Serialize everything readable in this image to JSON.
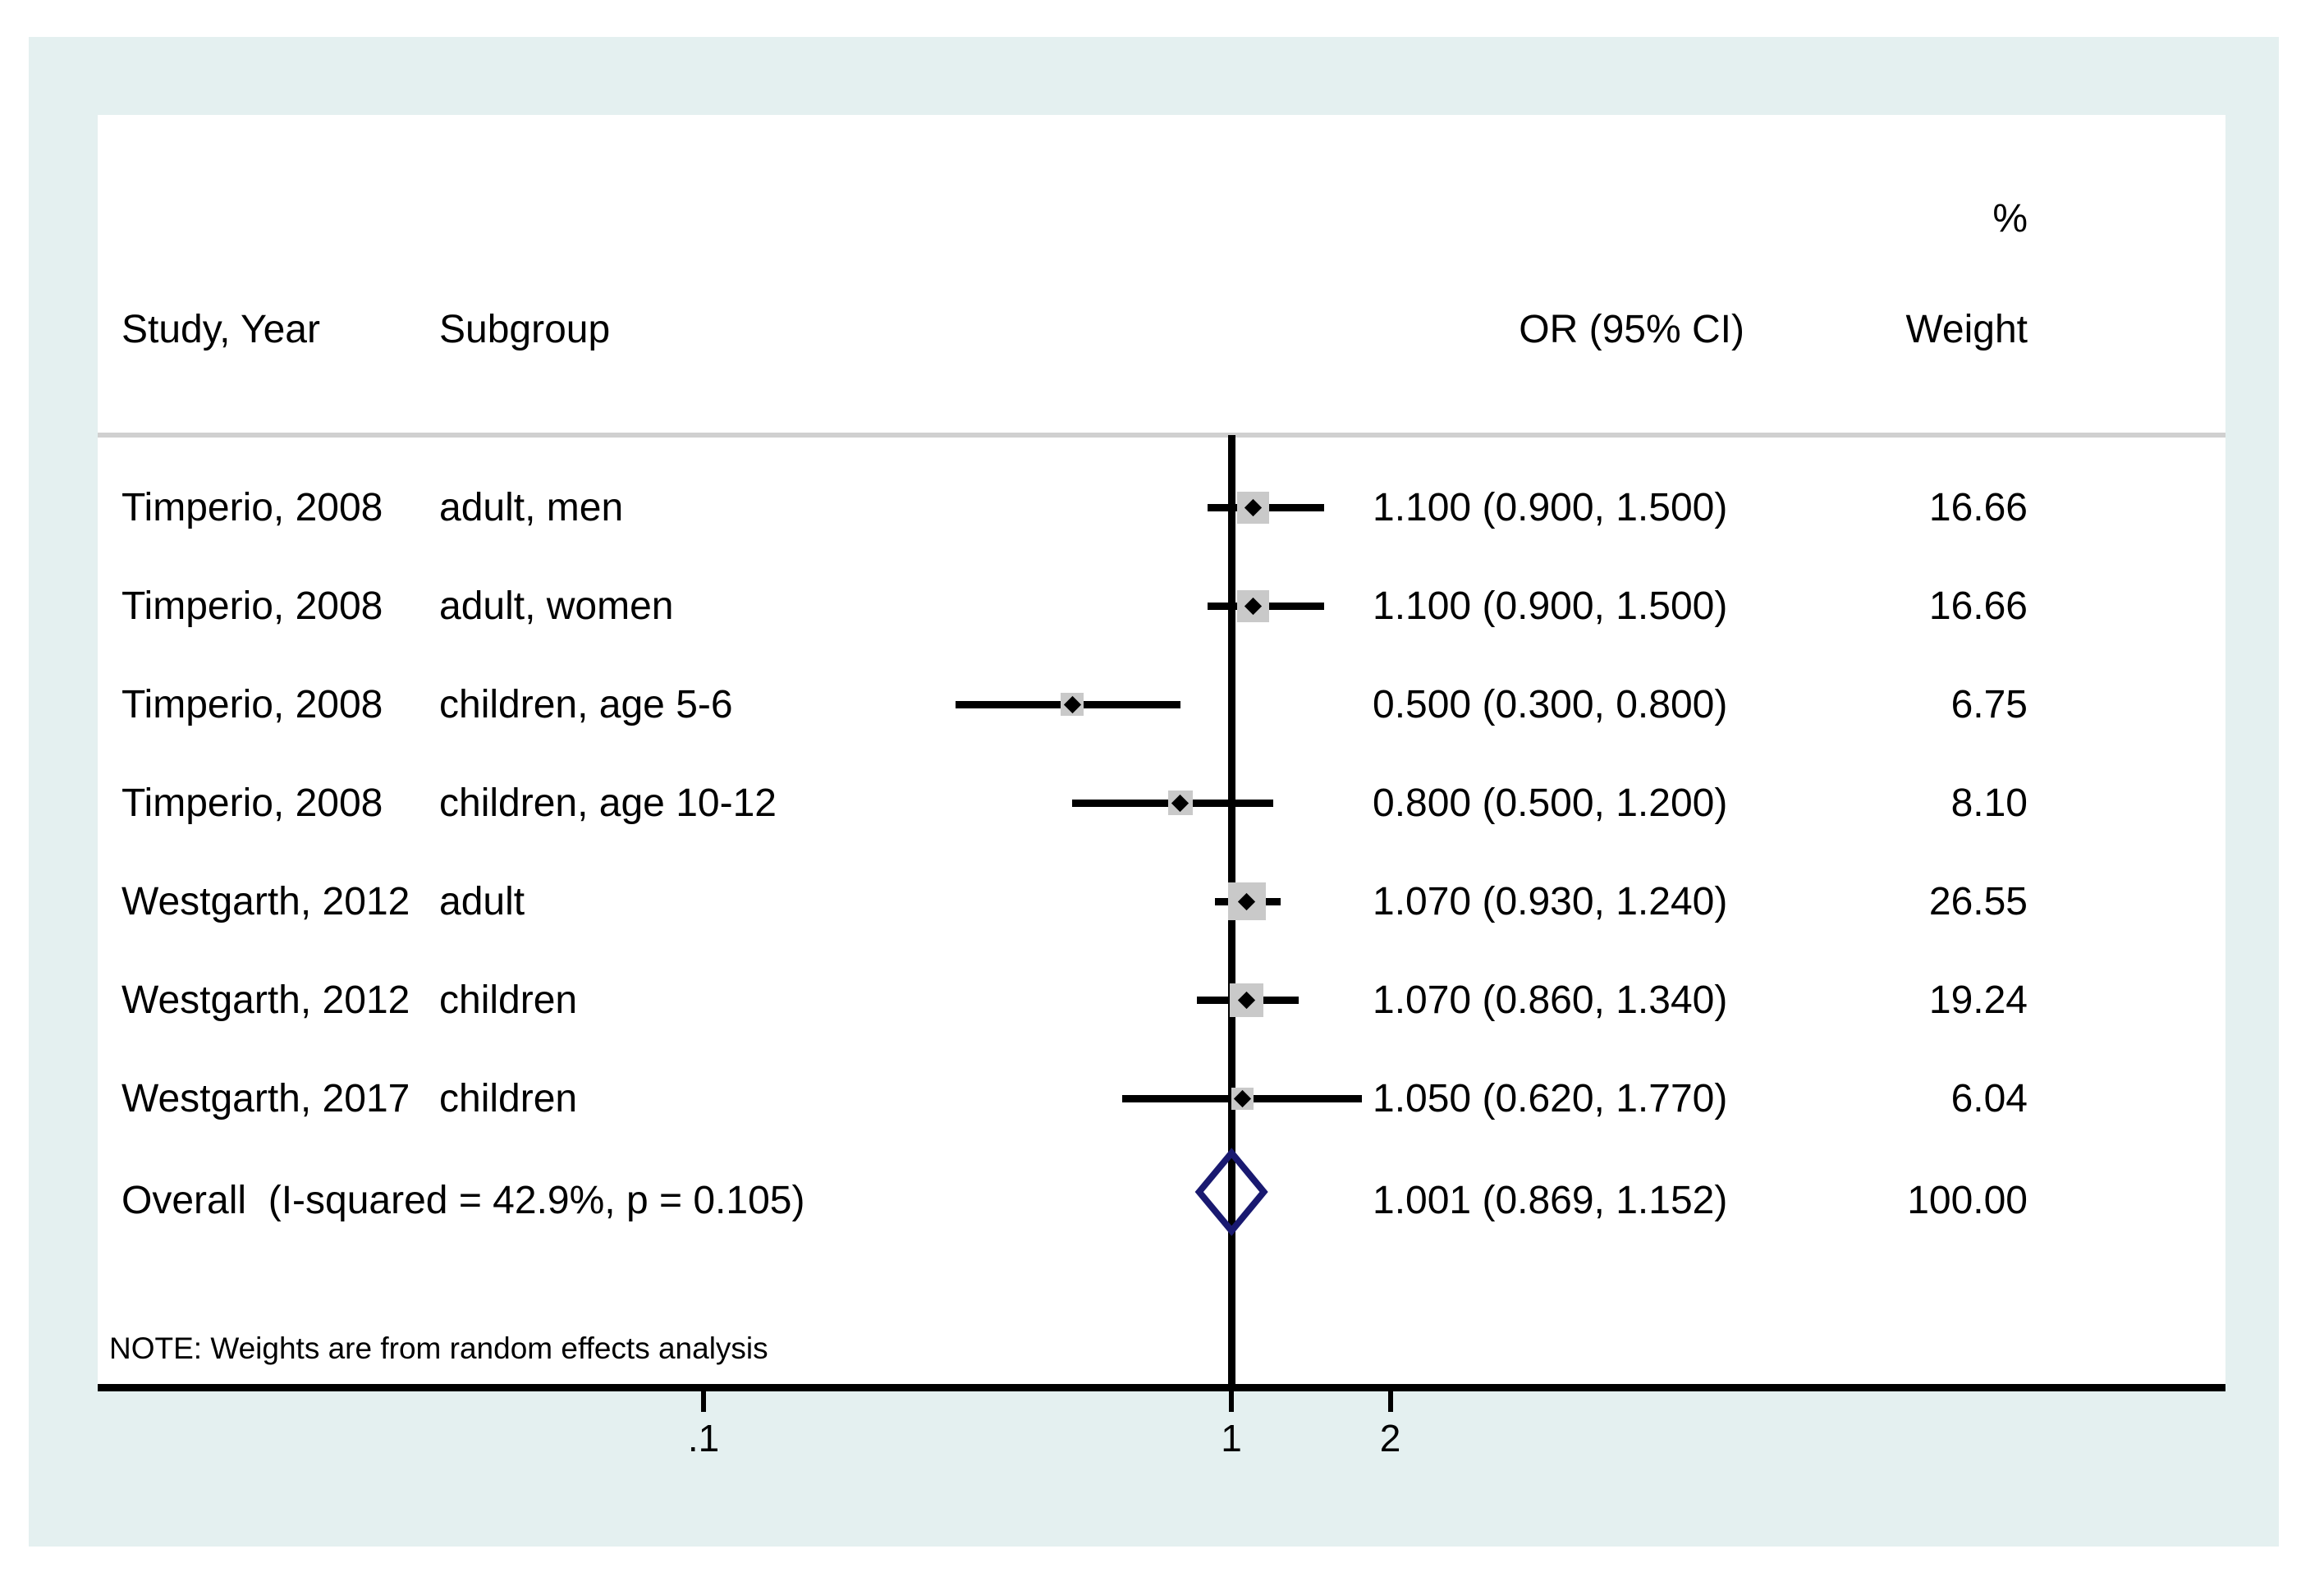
{
  "style": {
    "canvas_bg": "#ffffff",
    "region_bg": "#e4f0f0",
    "plot_bg": "#ffffff",
    "divider": "#d0d0d0",
    "line": "#000000",
    "weight_square": "#c9c9c9",
    "diamond": "#191970",
    "text": "#000000"
  },
  "chart_data": {
    "type": "forest",
    "columns": {
      "study": "Study, Year",
      "subgroup": "Subgroup",
      "percent": "%",
      "or_ci": "OR (95% CI)",
      "weight": "Weight"
    },
    "x_axis": {
      "scale": "log10",
      "ref_line_value": 1,
      "ticks": [
        {
          "label": ".1",
          "value": 0.1
        },
        {
          "label": "1",
          "value": 1
        },
        {
          "label": "2",
          "value": 2
        }
      ]
    },
    "studies": [
      {
        "study": "Timperio, 2008",
        "subgroup": "adult, men",
        "or": 1.1,
        "ci_low": 0.9,
        "ci_high": 1.5,
        "or_label": "1.100 (0.900, 1.500)",
        "weight": 16.66,
        "weight_label": "16.66"
      },
      {
        "study": "Timperio, 2008",
        "subgroup": "adult, women",
        "or": 1.1,
        "ci_low": 0.9,
        "ci_high": 1.5,
        "or_label": "1.100 (0.900, 1.500)",
        "weight": 16.66,
        "weight_label": "16.66"
      },
      {
        "study": "Timperio, 2008",
        "subgroup": "children, age 5-6",
        "or": 0.5,
        "ci_low": 0.3,
        "ci_high": 0.8,
        "or_label": "0.500 (0.300, 0.800)",
        "weight": 6.75,
        "weight_label": "6.75"
      },
      {
        "study": "Timperio, 2008",
        "subgroup": "children, age 10-12",
        "or": 0.8,
        "ci_low": 0.5,
        "ci_high": 1.2,
        "or_label": "0.800 (0.500, 1.200)",
        "weight": 8.1,
        "weight_label": "8.10"
      },
      {
        "study": "Westgarth, 2012",
        "subgroup": "adult",
        "or": 1.07,
        "ci_low": 0.93,
        "ci_high": 1.24,
        "or_label": "1.070 (0.930, 1.240)",
        "weight": 26.55,
        "weight_label": "26.55"
      },
      {
        "study": "Westgarth, 2012",
        "subgroup": "children",
        "or": 1.07,
        "ci_low": 0.86,
        "ci_high": 1.34,
        "or_label": "1.070 (0.860, 1.340)",
        "weight": 19.24,
        "weight_label": "19.24"
      },
      {
        "study": "Westgarth, 2017",
        "subgroup": "children",
        "or": 1.05,
        "ci_low": 0.62,
        "ci_high": 1.77,
        "or_label": "1.050 (0.620, 1.770)",
        "weight": 6.04,
        "weight_label": "6.04"
      }
    ],
    "overall": {
      "label": "Overall  (I-squared = 42.9%, p = 0.105)",
      "or": 1.001,
      "ci_low": 0.869,
      "ci_high": 1.152,
      "or_label": "1.001 (0.869, 1.152)",
      "weight_label": "100.00"
    },
    "note": "NOTE: Weights are from random effects analysis"
  }
}
